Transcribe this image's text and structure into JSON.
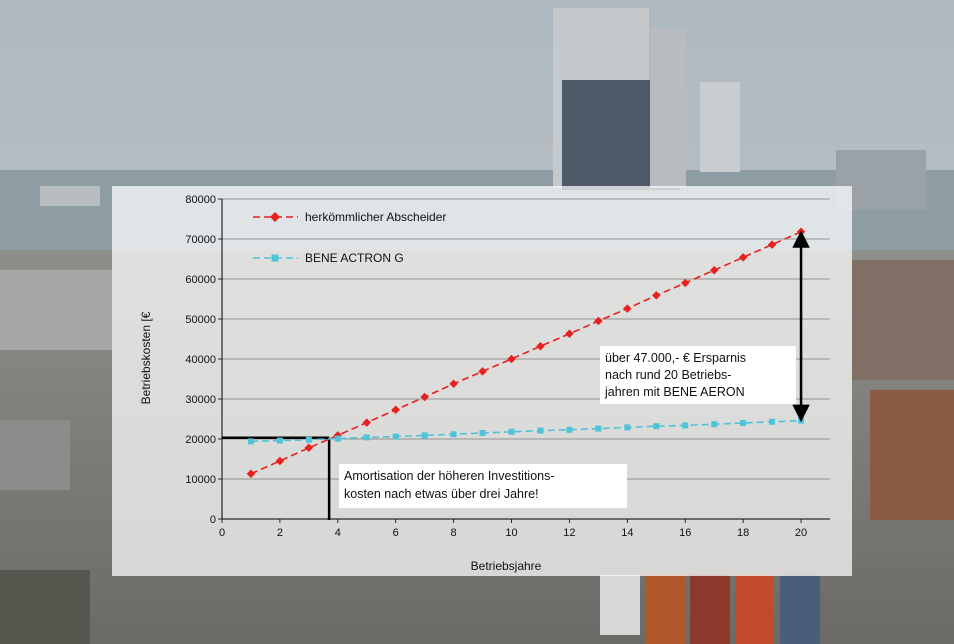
{
  "chart_data": {
    "type": "line",
    "xlabel": "Betriebsjahre",
    "ylabel": "Betriebskosten [€",
    "xlim": [
      0,
      21
    ],
    "ylim": [
      0,
      80000
    ],
    "xticks": [
      0,
      2,
      4,
      6,
      8,
      10,
      12,
      14,
      16,
      18,
      20
    ],
    "yticks": [
      0,
      10000,
      20000,
      30000,
      40000,
      50000,
      60000,
      70000,
      80000
    ],
    "grid": "horizontal",
    "legend_position": "top-left",
    "series": [
      {
        "name": "herkömmlicher Abscheider",
        "color": "#e8201f",
        "marker": "diamond",
        "x": [
          1,
          2,
          3,
          4,
          5,
          6,
          7,
          8,
          9,
          10,
          11,
          12,
          13,
          14,
          15,
          16,
          17,
          18,
          19,
          20
        ],
        "y": [
          11300,
          14500,
          17800,
          20900,
          24100,
          27300,
          30500,
          33800,
          36900,
          40000,
          43200,
          46300,
          49500,
          52600,
          55900,
          59000,
          62200,
          65400,
          68600,
          71800
        ]
      },
      {
        "name": "BENE ACTRON G",
        "color": "#4fc3d8",
        "marker": "square",
        "x": [
          1,
          2,
          3,
          4,
          5,
          6,
          7,
          8,
          9,
          10,
          11,
          12,
          13,
          14,
          15,
          16,
          17,
          18,
          19,
          20
        ],
        "y": [
          19400,
          19600,
          19800,
          20100,
          20400,
          20600,
          20900,
          21200,
          21500,
          21800,
          22100,
          22300,
          22600,
          22900,
          23200,
          23400,
          23700,
          24000,
          24300,
          24600
        ]
      }
    ],
    "break_even": {
      "x": 3.7,
      "y": 20300
    },
    "annotations": [
      {
        "lines": [
          "über 47.000,- € Ersparnis",
          "nach rund 20 Betriebs-",
          "jahren mit BENE AERON"
        ]
      },
      {
        "lines": [
          "Amortisation der höheren Investitions-",
          "kosten nach etwas über drei Jahre!"
        ]
      }
    ],
    "savings_arrow": {
      "x": 20,
      "from": 71800,
      "to": 24600
    }
  }
}
